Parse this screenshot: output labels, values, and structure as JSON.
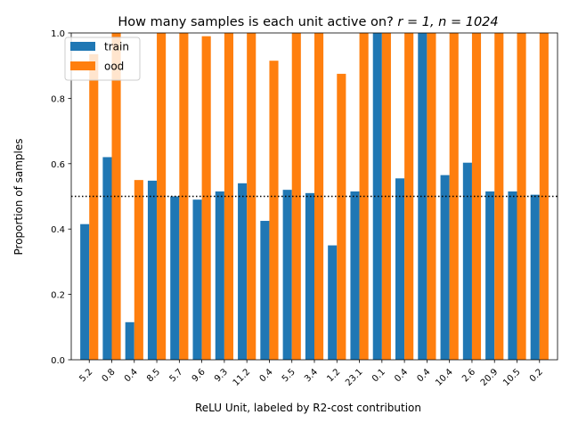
{
  "chart_data": {
    "type": "bar",
    "title": "How many samples is each unit active on? r = 1, n = 1024",
    "title_parts": {
      "prefix": "How many samples is each unit active on? ",
      "math": "r = 1, n = 1024"
    },
    "xlabel": "ReLU Unit, labeled by R2-cost contribution",
    "ylabel": "Proportion of samples",
    "categories": [
      "5.2",
      "0.8",
      "0.4",
      "8.5",
      "5.7",
      "9.6",
      "9.3",
      "11.2",
      "0.4",
      "5.5",
      "3.4",
      "1.2",
      "23.1",
      "0.1",
      "0.4",
      "0.4",
      "10.4",
      "2.6",
      "20.9",
      "10.5",
      "0.2"
    ],
    "series": [
      {
        "name": "train",
        "color": "#1f77b4",
        "values": [
          0.415,
          0.62,
          0.115,
          0.548,
          0.5,
          0.49,
          0.515,
          0.54,
          0.425,
          0.52,
          0.51,
          0.35,
          0.515,
          1.0,
          0.555,
          1.0,
          0.565,
          0.603,
          0.515,
          0.515,
          0.505
        ]
      },
      {
        "name": "ood",
        "color": "#ff7f0e",
        "values": [
          0.935,
          1.0,
          0.55,
          1.0,
          1.0,
          0.99,
          1.0,
          1.0,
          0.915,
          1.0,
          1.0,
          0.875,
          1.0,
          1.0,
          1.0,
          1.0,
          1.0,
          1.0,
          1.0,
          1.0,
          1.0
        ]
      }
    ],
    "ylim": [
      0,
      1.0
    ],
    "yticks": [
      "0.0",
      "0.2",
      "0.4",
      "0.6",
      "0.8",
      "1.0"
    ],
    "reference_line": {
      "y": 0.5,
      "style": "dotted",
      "color": "#000000"
    },
    "legend": {
      "placement": "top-left"
    },
    "grid": false
  }
}
